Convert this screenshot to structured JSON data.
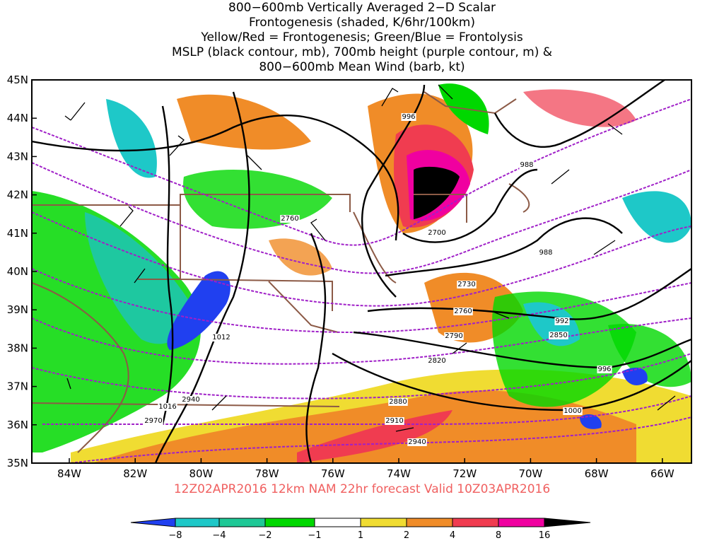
{
  "title": [
    "800−600mb Vertically Averaged 2−D Scalar",
    "Frontogenesis (shaded, K/6hr/100km)",
    "Yellow/Red = Frontogenesis;  Green/Blue = Frontolysis",
    "MSLP (black contour, mb), 700mb height (purple contour, m) &",
    "800−600mb Mean Wind (barb, kt)"
  ],
  "lat_labels": [
    "45N",
    "44N",
    "43N",
    "42N",
    "41N",
    "40N",
    "39N",
    "38N",
    "37N",
    "36N",
    "35N"
  ],
  "lon_labels": [
    "84W",
    "82W",
    "80W",
    "78W",
    "76W",
    "74W",
    "72W",
    "70W",
    "68W",
    "66W"
  ],
  "contour_labels": [
    "996",
    "988",
    "2760",
    "2700",
    "988",
    "2730",
    "2760",
    "992",
    "2790",
    "2850",
    "1012",
    "2820",
    "996",
    "2880",
    "2910",
    "1000",
    "1016",
    "2940",
    "2970",
    "2940"
  ],
  "footer": "12Z02APR2016 12km NAM 22hr forecast Valid 10Z03APR2016",
  "colorbar_labels": [
    "−8",
    "−4",
    "−2",
    "−1",
    "1",
    "2",
    "4",
    "8",
    "16"
  ]
}
